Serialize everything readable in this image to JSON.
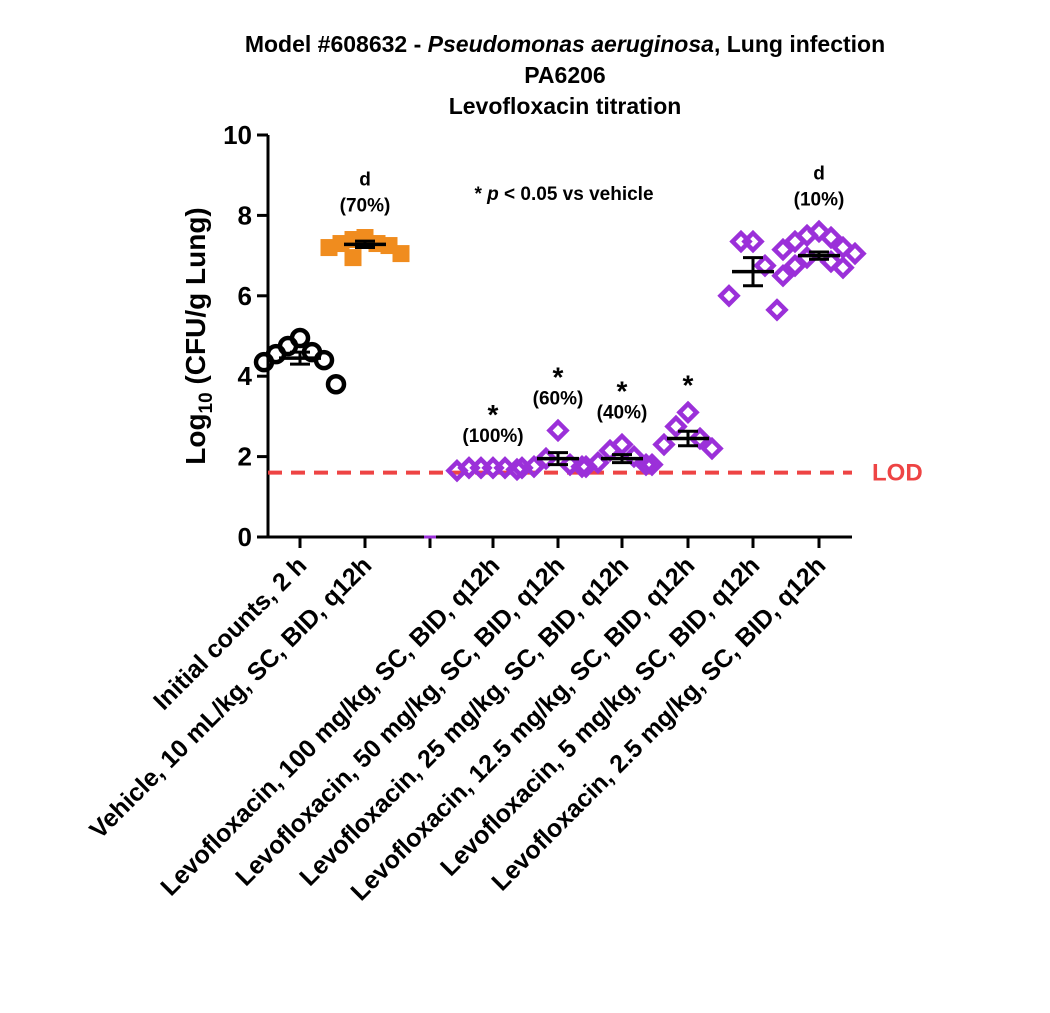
{
  "chart_data": {
    "type": "scatter",
    "title": {
      "prefix": "Model #608632 - ",
      "organism": "Pseudomonas aeruginosa",
      "suffix": ", Lung infection",
      "line2": "PA6206",
      "line3": "Levofloxacin titration"
    },
    "ylabel": {
      "main": "Log",
      "sub": "10",
      "rest": " (CFU/g Lung)"
    },
    "ylim": [
      0,
      10
    ],
    "yticks": [
      0,
      2,
      4,
      6,
      8,
      10
    ],
    "grid": false,
    "lod": {
      "value": 1.6,
      "label": "LOD",
      "color": "#ee4444"
    },
    "significance_note": {
      "star": "* ",
      "p": "p",
      "rest": " < 0.05 vs vehicle"
    },
    "categories": [
      "Initial counts, 2 h",
      "Vehicle, 10 mL/kg, SC, BID, q12h",
      "",
      "Levofloxacin, 100 mg/kg, SC, BID, q12h",
      "Levofloxacin, 50 mg/kg, SC, BID, q12h",
      "Levofloxacin, 25 mg/kg, SC, BID, q12h",
      "Levofloxacin, 12.5 mg/kg, SC, BID, q12h",
      "Levofloxacin, 5 mg/kg, SC, BID, q12h",
      "Levofloxacin, 2.5 mg/kg, SC, BID, q12h"
    ],
    "groups": [
      {
        "category_index": 0,
        "marker": "circle",
        "color": "#000000",
        "points": [
          4.95,
          4.75,
          4.6,
          4.55,
          4.4,
          4.35,
          3.8
        ],
        "mean": 4.45,
        "sem": 0.15,
        "annotations": []
      },
      {
        "category_index": 1,
        "marker": "square",
        "color": "#f08c1e",
        "points": [
          7.45,
          7.4,
          7.3,
          7.3,
          7.25,
          7.2,
          7.05,
          6.95
        ],
        "mean": 7.28,
        "sem": 0.08,
        "annotations": [
          "d",
          "(70%)"
        ]
      },
      {
        "category_index": 2,
        "marker": "diamond",
        "color": "#9b30d9",
        "points": [],
        "mean": null,
        "sem": null,
        "annotations": []
      },
      {
        "category_index": 3,
        "marker": "diamond",
        "color": "#9b30d9",
        "points": [
          1.72,
          1.72,
          1.72,
          1.72,
          1.68,
          1.65
        ],
        "mean": null,
        "sem": null,
        "annotations": [
          "*",
          "(100%)"
        ]
      },
      {
        "category_index": 4,
        "marker": "diamond",
        "color": "#9b30d9",
        "points": [
          2.65,
          1.95,
          1.8,
          1.75,
          1.75,
          1.72
        ],
        "mean": 1.95,
        "sem": 0.15,
        "annotations": [
          "*",
          "(60%)"
        ]
      },
      {
        "category_index": 5,
        "marker": "diamond",
        "color": "#9b30d9",
        "points": [
          2.3,
          2.15,
          2.0,
          1.85,
          1.8,
          1.75
        ],
        "mean": 1.95,
        "sem": 0.1,
        "annotations": [
          "*",
          "(40%)"
        ]
      },
      {
        "category_index": 6,
        "marker": "diamond",
        "color": "#9b30d9",
        "points": [
          3.1,
          2.75,
          2.45,
          2.3,
          2.2,
          1.8
        ],
        "mean": 2.45,
        "sem": 0.18,
        "annotations": [
          "*"
        ]
      },
      {
        "category_index": 7,
        "marker": "diamond",
        "color": "#9b30d9",
        "points": [
          7.35,
          7.35,
          6.75,
          6.0,
          5.65
        ],
        "mean": 6.6,
        "sem": 0.35,
        "annotations": []
      },
      {
        "category_index": 8,
        "marker": "diamond",
        "color": "#9b30d9",
        "points": [
          7.6,
          7.5,
          7.45,
          7.35,
          7.2,
          7.15,
          7.05,
          6.95,
          6.85,
          6.75,
          6.7,
          6.5
        ],
        "mean": 7.0,
        "sem": 0.09,
        "annotations": [
          "d",
          "(10%)"
        ]
      }
    ]
  }
}
